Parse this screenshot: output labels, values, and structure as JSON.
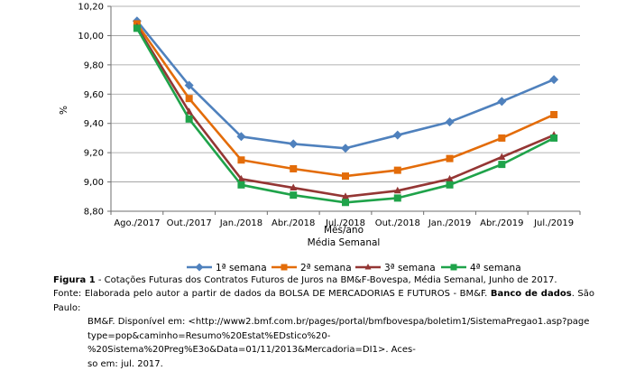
{
  "chart_data": {
    "type": "line",
    "categories": [
      "Ago./2017",
      "Out./2017",
      "Jan./2018",
      "Abr./2018",
      "Jul./2018",
      "Out./2018",
      "Jan./2019",
      "Abr./2019",
      "Jul./2019"
    ],
    "series": [
      {
        "name": "1ª semana",
        "color": "#4F81BD",
        "marker": "diamond",
        "values": [
          10.1,
          9.66,
          9.31,
          9.26,
          9.23,
          9.32,
          9.41,
          9.55,
          9.7
        ]
      },
      {
        "name": "2ª semana",
        "color": "#E36C09",
        "marker": "square",
        "values": [
          10.08,
          9.57,
          9.15,
          9.09,
          9.04,
          9.08,
          9.16,
          9.3,
          9.46
        ]
      },
      {
        "name": "3ª semana",
        "color": "#943634",
        "marker": "triangle",
        "values": [
          10.06,
          9.48,
          9.02,
          8.96,
          8.9,
          8.94,
          9.02,
          9.17,
          9.32
        ]
      },
      {
        "name": "4ª semana",
        "color": "#1FA34A",
        "marker": "square",
        "values": [
          10.05,
          9.43,
          8.98,
          8.91,
          8.86,
          8.89,
          8.98,
          9.12,
          9.3
        ]
      }
    ],
    "yticks": [
      "10,20",
      "10,00",
      "9,80",
      "9,60",
      "9,40",
      "9,20",
      "9,00",
      "8,80"
    ],
    "ylim": [
      8.8,
      10.2
    ],
    "ylabel": "%",
    "xlabel": "Mês/ano",
    "subtitle": "Média Semanal",
    "grid": true,
    "legend": "bottom"
  },
  "caption": {
    "label": "Figura 1",
    "text": " - Cotações Futuras dos Contratos Futuros de Juros na BM&F-Bovespa, Média Semanal, Junho de 2017."
  },
  "source": {
    "lead": "Fonte: Elaborada pelo autor a partir de dados da BOLSA DE MERCADORIAS E FUTUROS - BM&F. ",
    "bold": "Banco de dados",
    "after_bold": ". São Paulo:",
    "line2": "BM&F.   Disponível   em:   <http://www2.bmf.com.br/pages/portal/bmfbovespa/boletim1/SistemaPregao1.asp?page",
    "line3": "type=pop&caminho=Resumo%20Estat%EDstico%20-%20Sistema%20Preg%E3o&Data=01/11/2013&Mercadoria=DI1>.  Aces-",
    "line4": "so em: jul. 2017."
  }
}
